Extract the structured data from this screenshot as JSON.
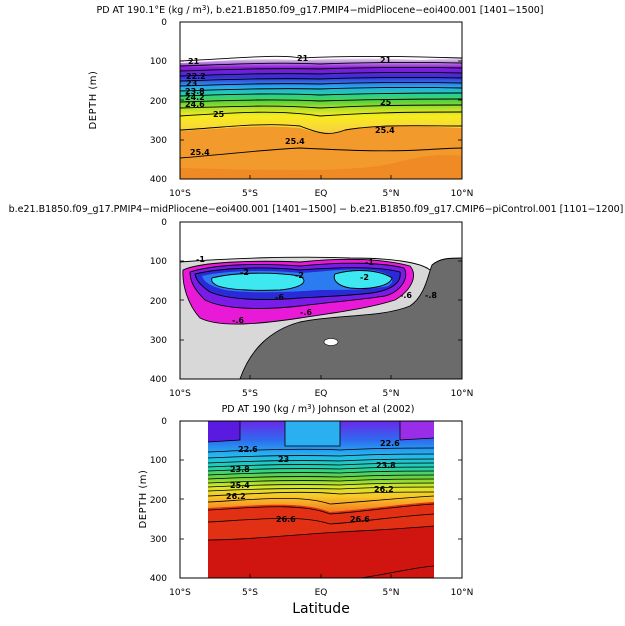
{
  "chart_data": [
    {
      "type": "contour",
      "title_parts": [
        "PD AT 190.1°E (kg / m",
        "3",
        "), b.e21.B1850.f09_g17.PMIP4−midPliocene−eoi400.001 [1401−1500]"
      ],
      "ylabel": "DEPTH (m)",
      "xlabel": "",
      "xlim": [
        -10,
        10
      ],
      "ylim": [
        400,
        0
      ],
      "x_ticks": [
        "10°S",
        "5°S",
        "EQ",
        "5°N",
        "10°N"
      ],
      "y_ticks": [
        "0",
        "100",
        "200",
        "300",
        "400"
      ],
      "contour_levels": [
        21,
        21.4,
        21.8,
        22.2,
        22.6,
        23,
        23.4,
        23.8,
        24.2,
        24.6,
        25,
        25.4
      ],
      "contour_labels": [
        "21",
        "21",
        "21",
        "22.2",
        "23",
        "23.8",
        "24.2",
        "24.6",
        "25",
        "25",
        "25.4",
        "25.4",
        "25.4"
      ]
    },
    {
      "type": "contour",
      "title": "b.e21.B1850.f09_g17.PMIP4−midPliocene−eoi400.001 [1401−1500] − b.e21.B1850.f09_g17.CMIP6−piControl.001 [1101−1200]",
      "ylabel": "",
      "xlim": [
        -10,
        10
      ],
      "ylim": [
        400,
        0
      ],
      "x_ticks": [
        "10°S",
        "5°S",
        "EQ",
        "5°N",
        "10°N"
      ],
      "y_ticks": [
        "0",
        "100",
        "200",
        "300",
        "400"
      ],
      "contour_levels": [
        -2.4,
        -2,
        -1.6,
        -1.2,
        -0.8,
        -0.4,
        0,
        0.4
      ],
      "contour_labels": [
        "-1",
        "-1",
        "-2",
        "-2",
        "-2",
        "-6",
        "-.6",
        "-.6",
        "-.6",
        "-.8"
      ]
    },
    {
      "type": "contour",
      "title_parts": [
        "PD AT 190 (kg / m",
        "3",
        ") Johnson et al (2002)"
      ],
      "ylabel": "DEPTH (m)",
      "xlabel": "Latitude",
      "xlim": [
        -10,
        10
      ],
      "ylim": [
        400,
        0
      ],
      "x_ticks": [
        "10°S",
        "5°S",
        "EQ",
        "5°N",
        "10°N"
      ],
      "y_ticks": [
        "0",
        "100",
        "200",
        "300",
        "400"
      ],
      "contour_levels": [
        21.4,
        21.8,
        22.2,
        22.6,
        23,
        23.4,
        23.8,
        24.2,
        24.6,
        25,
        25.4,
        25.8,
        26.2,
        26.6
      ],
      "contour_labels": [
        "22.6",
        "22.6",
        "23",
        "23.8",
        "23.8",
        "25.4",
        "26.2",
        "26.2",
        "26.6",
        "26.6"
      ]
    }
  ],
  "colors": {
    "top_deep": "#f39a2c",
    "bottom_deep": "#d10b0b",
    "diff_gray_dark": "#6b6b6b",
    "diff_gray_light": "#d8d8d8",
    "diff_magenta": "#e81ad8",
    "diff_cyan": "#3ee8f0"
  }
}
